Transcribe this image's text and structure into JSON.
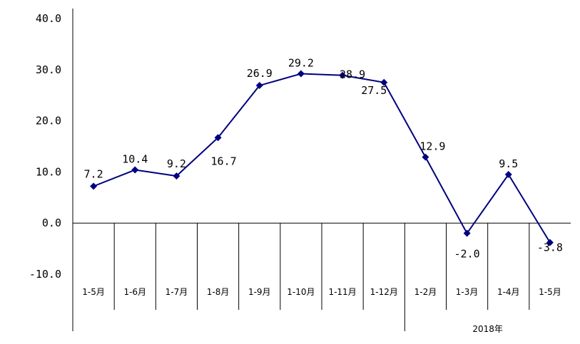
{
  "chart_data": {
    "type": "line",
    "categories": [
      "1-5月",
      "1-6月",
      "1-7月",
      "1-8月",
      "1-9月",
      "1-10月",
      "1-11月",
      "1-12月",
      "1-2月",
      "1-3月",
      "1-4月",
      "1-5月"
    ],
    "series": [
      {
        "values": [
          7.2,
          10.4,
          9.2,
          16.7,
          26.9,
          29.2,
          28.9,
          27.5,
          12.9,
          -2.0,
          9.5,
          -3.8
        ],
        "labels": [
          "7.2",
          "10.4",
          "9.2",
          "16.7",
          "26.9",
          "29.2",
          "28.9",
          "27.5",
          "12.9",
          "-2.0",
          "9.5",
          "-3.8"
        ],
        "color": "#000080"
      }
    ],
    "yticks": [
      "40.0",
      "30.0",
      "20.0",
      "10.0",
      "0.0",
      "-10.0"
    ],
    "ylim": [
      -10,
      40
    ],
    "group_labels": [
      {
        "label": "2018年",
        "start_index": 8,
        "end_index": 11
      }
    ],
    "title": "",
    "xlabel": "",
    "ylabel": "",
    "grid": false,
    "marker": "diamond"
  }
}
